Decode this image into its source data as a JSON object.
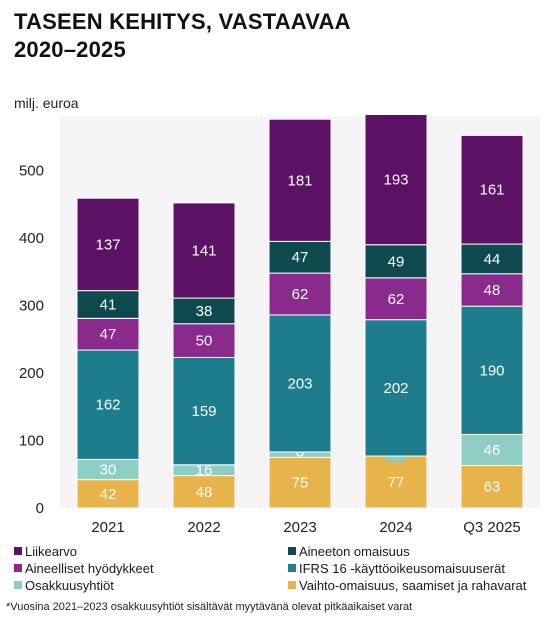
{
  "title_line1": "TASEEN KEHITYS, VASTAAVAA",
  "title_line2": "2020–2025",
  "footnote": "*Vuosina 2021–2023 osakkuusyhtiöt sisältävät myytävänä olevat pitkäaikaiset varat",
  "chart_data": {
    "type": "bar",
    "stacked": true,
    "ylabel": "milj. euroa",
    "ylim": [
      0,
      580
    ],
    "yticks": [
      0,
      100,
      200,
      300,
      400,
      500
    ],
    "grid": false,
    "legend_position": "bottom",
    "categories": [
      "2021",
      "2022",
      "2023",
      "2024",
      "Q3 2025"
    ],
    "series": [
      {
        "name": "Vaihto-omaisuus, saamiset ja rahavarat",
        "color": "#e8b34a",
        "values": [
          42,
          48,
          75,
          77,
          63
        ]
      },
      {
        "name": "Osakkuusyhtiöt",
        "color": "#8ecdc3",
        "values": [
          30,
          16,
          8,
          0,
          46
        ]
      },
      {
        "name": "IFRS 16 -käyttöoikeusomaisuuserät",
        "color": "#1e7d8c",
        "values": [
          162,
          159,
          203,
          202,
          190
        ]
      },
      {
        "name": "Aineelliset hyödykkeet",
        "color": "#8a2a8c",
        "values": [
          47,
          50,
          62,
          62,
          48
        ]
      },
      {
        "name": "Aineeton omaisuus",
        "color": "#0d4a4e",
        "values": [
          41,
          38,
          47,
          49,
          44
        ]
      },
      {
        "name": "Liikearvo",
        "color": "#5b1264",
        "values": [
          137,
          141,
          181,
          193,
          161
        ]
      }
    ],
    "legend_order": [
      "Liikearvo",
      "Aineeton omaisuus",
      "Aineelliset hyödykkeet",
      "IFRS 16 -käyttöoikeusomaisuuserät",
      "Osakkuusyhtiöt",
      "Vaihto-omaisuus, saamiset ja rahavarat"
    ]
  }
}
